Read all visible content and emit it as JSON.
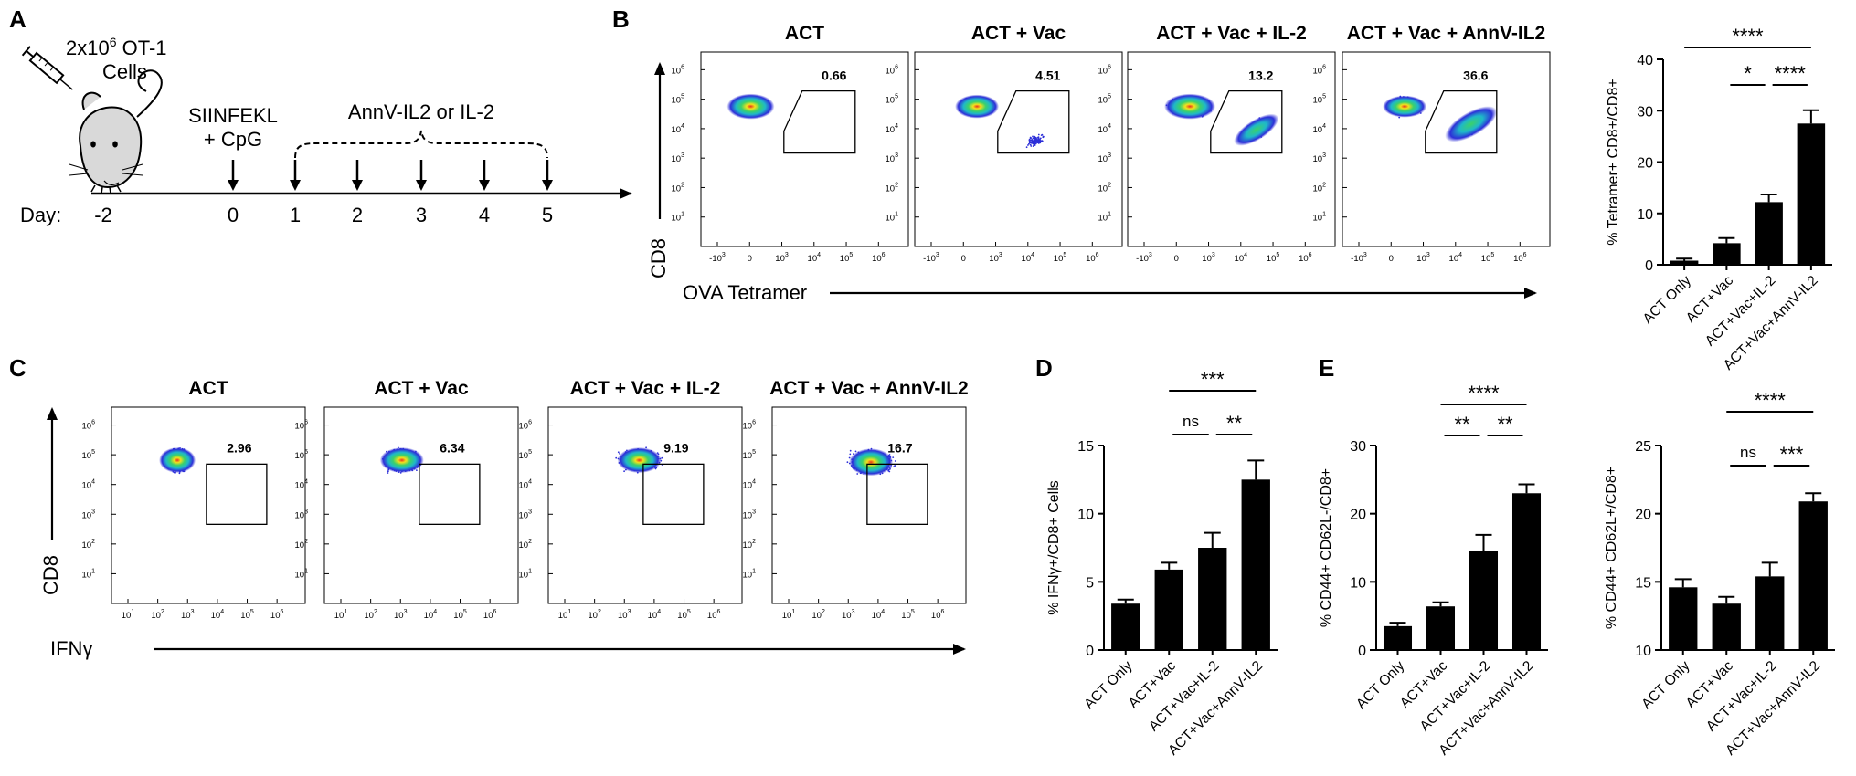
{
  "panel_labels": {
    "A": "A",
    "B": "B",
    "C": "C",
    "D": "D",
    "E": "E"
  },
  "colors": {
    "ink": "#000000",
    "density_low": "#2d2fd8",
    "density_mid": "#1fb8c9",
    "density_mid2": "#3bd16a",
    "density_high": "#f4e21c",
    "density_peak": "#e8311e"
  },
  "schematic": {
    "cells_line1_base": "2x10",
    "cells_line1_exp": "6",
    "cells_line1_tail": " OT-1",
    "cells_line2": "Cells",
    "vaccine_line1": "SIINFEKL",
    "vaccine_line2": "+ CpG",
    "treatment": "AnnV-IL2 or IL-2",
    "day_label": "Day:",
    "days": [
      "-2",
      "0",
      "1",
      "2",
      "3",
      "4",
      "5"
    ]
  },
  "flow_B": {
    "y_axis_label": "CD8",
    "x_axis_label": "OVA Tetramer",
    "panels": [
      {
        "title": "ACT",
        "gate_pct": "0.66"
      },
      {
        "title": "ACT + Vac",
        "gate_pct": "4.51"
      },
      {
        "title": "ACT + Vac + IL-2",
        "gate_pct": "13.2"
      },
      {
        "title": "ACT + Vac + AnnV-IL2",
        "gate_pct": "36.6"
      }
    ],
    "y_ticks": [
      "10",
      "10",
      "10",
      "10",
      "10",
      "10"
    ],
    "y_tick_exps": [
      "1",
      "2",
      "3",
      "4",
      "5",
      "6"
    ],
    "x_ticks": [
      "-10",
      "0",
      "10",
      "10",
      "10",
      "10"
    ],
    "x_tick_exps": [
      "3",
      "",
      "3",
      "4",
      "5",
      "6"
    ]
  },
  "flow_C": {
    "y_axis_label": "CD8",
    "x_axis_label": "IFNγ",
    "panels": [
      {
        "title": "ACT",
        "gate_pct": "2.96"
      },
      {
        "title": "ACT + Vac",
        "gate_pct": "6.34"
      },
      {
        "title": "ACT + Vac + IL-2",
        "gate_pct": "9.19"
      },
      {
        "title": "ACT + Vac + AnnV-IL2",
        "gate_pct": "16.7"
      }
    ],
    "y_ticks": [
      "10",
      "10",
      "10",
      "10",
      "10",
      "10"
    ],
    "y_tick_exps": [
      "1",
      "2",
      "3",
      "4",
      "5",
      "6"
    ],
    "x_ticks": [
      "10",
      "10",
      "10",
      "10",
      "10",
      "10"
    ],
    "x_tick_exps": [
      "1",
      "2",
      "3",
      "4",
      "5",
      "6"
    ]
  },
  "chart_data": [
    {
      "id": "B-bar",
      "type": "bar",
      "categories": [
        "ACT Only",
        "ACT+Vac",
        "ACT+Vac+IL-2",
        "ACT+Vac+AnnV-IL2"
      ],
      "values": [
        0.8,
        4.2,
        12.2,
        27.5
      ],
      "errors": [
        0.4,
        1.0,
        1.5,
        2.6
      ],
      "ylabel": "% Tetramer+ CD8+/CD8+",
      "ylim": [
        0,
        40
      ],
      "yticks": [
        0,
        10,
        20,
        30,
        40
      ],
      "significance": [
        {
          "from": 0,
          "to": 3,
          "label": "****",
          "level": 2
        },
        {
          "from": 1,
          "to": 2,
          "label": "*",
          "level": 1
        },
        {
          "from": 2,
          "to": 3,
          "label": "****",
          "level": 1
        }
      ]
    },
    {
      "id": "D-bar",
      "type": "bar",
      "categories": [
        "ACT Only",
        "ACT+Vac",
        "ACT+Vac+IL-2",
        "ACT+Vac+AnnV-IL2"
      ],
      "values": [
        3.4,
        5.9,
        7.5,
        12.5
      ],
      "errors": [
        0.3,
        0.5,
        1.1,
        1.4
      ],
      "ylabel": "% IFNγ+/CD8+ Cells",
      "ylim": [
        0,
        15
      ],
      "yticks": [
        0,
        5,
        10,
        15
      ],
      "significance": [
        {
          "from": 1,
          "to": 3,
          "label": "***",
          "level": 2
        },
        {
          "from": 1,
          "to": 2,
          "label": "ns",
          "level": 1
        },
        {
          "from": 2,
          "to": 3,
          "label": "**",
          "level": 1
        }
      ]
    },
    {
      "id": "E1-bar",
      "type": "bar",
      "categories": [
        "ACT Only",
        "ACT+Vac",
        "ACT+Vac+IL-2",
        "ACT+Vac+AnnV-IL2"
      ],
      "values": [
        3.5,
        6.4,
        14.6,
        23.0
      ],
      "errors": [
        0.5,
        0.6,
        2.3,
        1.3
      ],
      "ylabel": "% CD44+ CD62L-/CD8+",
      "ylim": [
        0,
        30
      ],
      "yticks": [
        0,
        10,
        20,
        30
      ],
      "significance": [
        {
          "from": 1,
          "to": 3,
          "label": "****",
          "level": 2
        },
        {
          "from": 1,
          "to": 2,
          "label": "**",
          "level": 1
        },
        {
          "from": 2,
          "to": 3,
          "label": "**",
          "level": 1
        }
      ]
    },
    {
      "id": "E2-bar",
      "type": "bar",
      "categories": [
        "ACT Only",
        "ACT+Vac",
        "ACT+Vac+IL-2",
        "ACT+Vac+AnnV-IL2"
      ],
      "values": [
        14.6,
        13.4,
        15.4,
        20.9
      ],
      "errors": [
        0.6,
        0.5,
        1.0,
        0.6
      ],
      "ylabel": "% CD44+ CD62L+/CD8+",
      "ylim": [
        10,
        25
      ],
      "yticks": [
        10,
        15,
        20,
        25
      ],
      "significance": [
        {
          "from": 1,
          "to": 3,
          "label": "****",
          "level": 2
        },
        {
          "from": 1,
          "to": 2,
          "label": "ns",
          "level": 1
        },
        {
          "from": 2,
          "to": 3,
          "label": "***",
          "level": 1
        }
      ]
    }
  ]
}
